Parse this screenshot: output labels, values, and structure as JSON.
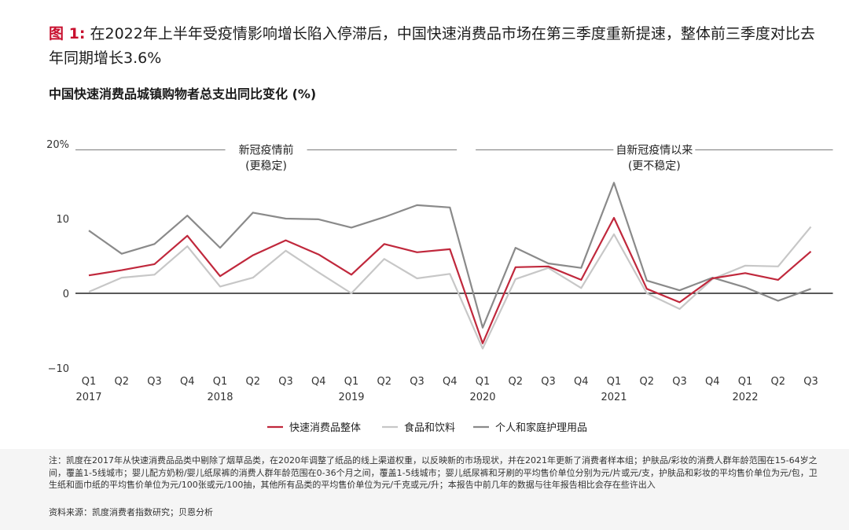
{
  "header": {
    "figure_label": "图 1:",
    "headline": "在2022年上半年受疫情影响增长陷入停滞后，中国快速消费品市场在第三季度重新提速，整体前三季度对比去年同期增长3.6%",
    "subtitle": "中国快速消费品城镇购物者总支出同比变化 (%)"
  },
  "footer": {
    "notes": "注：凯度在2017年从快速消费品品类中剔除了烟草品类，在2020年调整了纸品的线上渠道权重，以反映新的市场现状，并在2021年更新了消费者样本组；护肤品/彩妆的消费人群年龄范围在15-64岁之间，覆盖1-5线城市；婴儿配方奶粉/婴儿纸尿裤的消费人群年龄范围在0-36个月之间，覆盖1-5线城市；婴儿纸尿裤和牙刷的平均售价单位分别为元/片或元/支，护肤品和彩妆的平均售价单位为元/包，卫生纸和面巾纸的平均售价单位为元/100张或元/100抽，其他所有品类的平均售价单位为元/千克或元/升；本报告中前几年的数据与往年报告相比会存在些许出入",
    "source": "资料来源：凯度消费者指数研究；贝恩分析"
  },
  "chart_data": {
    "type": "line",
    "title": "中国快速消费品城镇购物者总支出同比变化 (%)",
    "ylabel": "",
    "ylim": [
      -10,
      20
    ],
    "yticks": [
      {
        "value": 20,
        "label": "20%"
      },
      {
        "value": 10,
        "label": "10"
      },
      {
        "value": 0,
        "label": "0"
      },
      {
        "value": -10,
        "label": "−10"
      }
    ],
    "grid": false,
    "legend_position": "bottom",
    "categories": [
      "Q1",
      "Q2",
      "Q3",
      "Q4",
      "Q1",
      "Q2",
      "Q3",
      "Q4",
      "Q1",
      "Q2",
      "Q3",
      "Q4",
      "Q1",
      "Q2",
      "Q3",
      "Q4",
      "Q1",
      "Q2",
      "Q3",
      "Q4",
      "Q1",
      "Q2",
      "Q3"
    ],
    "years": [
      {
        "label": "2017",
        "start": 0
      },
      {
        "label": "2018",
        "start": 4
      },
      {
        "label": "2019",
        "start": 8
      },
      {
        "label": "2020",
        "start": 12
      },
      {
        "label": "2021",
        "start": 16
      },
      {
        "label": "2022",
        "start": 20
      }
    ],
    "periods": [
      {
        "label": "新冠疫情前",
        "sublabel": "(更稳定)",
        "from": 0,
        "to": 11.5
      },
      {
        "label": "自新冠疫情以来",
        "sublabel": "(更不稳定)",
        "from": 11.5,
        "to": 22
      }
    ],
    "series": [
      {
        "name": "快速消费品整体",
        "color": "#c0283c",
        "values": [
          2.4,
          3.1,
          3.9,
          7.7,
          2.3,
          5.1,
          7.1,
          5.2,
          2.5,
          6.6,
          5.5,
          5.9,
          -6.7,
          3.5,
          3.6,
          1.8,
          10.1,
          0.6,
          -1.2,
          2.0,
          2.7,
          1.8,
          5.6
        ]
      },
      {
        "name": "食品和饮料",
        "color": "#c7c7c7",
        "values": [
          0.2,
          2.1,
          2.5,
          6.3,
          0.9,
          2.1,
          5.7,
          2.8,
          0.0,
          4.6,
          2.0,
          2.6,
          -7.4,
          1.9,
          3.4,
          0.7,
          7.9,
          0.0,
          -2.1,
          1.9,
          3.7,
          3.6,
          8.9
        ]
      },
      {
        "name": "个人和家庭护理用品",
        "color": "#8a8a8a",
        "values": [
          8.4,
          5.3,
          6.6,
          10.4,
          6.1,
          10.8,
          10.0,
          9.9,
          8.8,
          10.2,
          11.8,
          11.5,
          -4.6,
          6.1,
          4.0,
          3.4,
          14.8,
          1.7,
          0.4,
          2.1,
          0.8,
          -1.0,
          0.6
        ]
      }
    ]
  }
}
